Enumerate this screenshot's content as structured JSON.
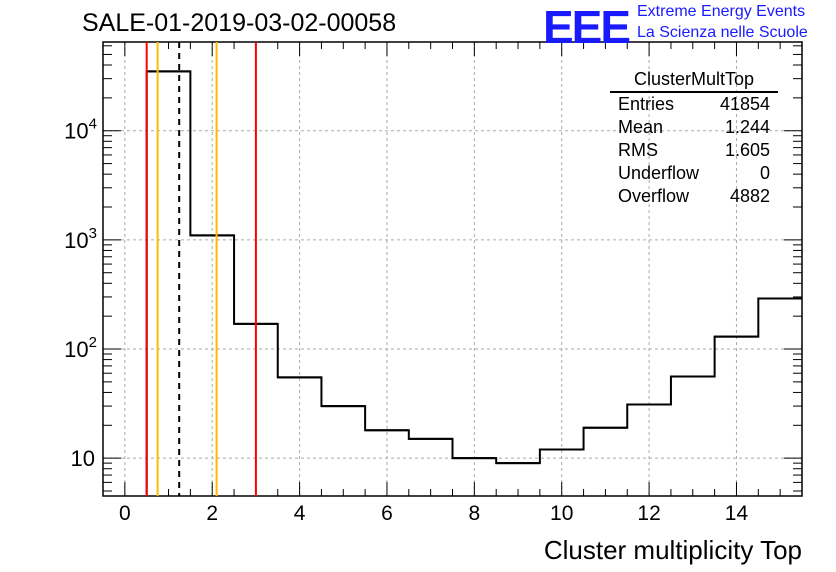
{
  "header": {
    "run_title": "SALE-01-2019-03-02-00058",
    "logo_text": "EEE",
    "logo_line1": "Extreme Energy Events",
    "logo_line2": "La Scienza nelle Scuole",
    "logo_color": "#1a1aff"
  },
  "stats_box": {
    "name": "ClusterMultTop",
    "rows": [
      {
        "label": "Entries",
        "value": "41854"
      },
      {
        "label": "Mean",
        "value": "1.244"
      },
      {
        "label": "RMS",
        "value": "1.605"
      },
      {
        "label": "Underflow",
        "value": "0"
      },
      {
        "label": "Overflow",
        "value": "4882"
      }
    ]
  },
  "chart_data": {
    "type": "histogram",
    "xlabel": "Cluster multiplicity Top",
    "ylabel": "",
    "xlim": [
      -0.5,
      15.5
    ],
    "ylim": [
      4.5,
      65000
    ],
    "y_scale": "log",
    "grid": true,
    "x_ticks": [
      0,
      2,
      4,
      6,
      8,
      10,
      12,
      14
    ],
    "y_ticks": [
      {
        "value": 10,
        "base": "10",
        "exp": ""
      },
      {
        "value": 100,
        "base": "10",
        "exp": "2"
      },
      {
        "value": 1000,
        "base": "10",
        "exp": "3"
      },
      {
        "value": 10000,
        "base": "10",
        "exp": "4"
      }
    ],
    "bin_edges": [
      0.5,
      1.5,
      2.5,
      3.5,
      4.5,
      5.5,
      6.5,
      7.5,
      8.5,
      9.5,
      10.5,
      11.5,
      12.5,
      13.5,
      14.5,
      15.5
    ],
    "counts": [
      35000,
      1100,
      170,
      55,
      30,
      18,
      15,
      10,
      9,
      12,
      19,
      31,
      56,
      130,
      290
    ],
    "vertical_lines": [
      {
        "x": 0.5,
        "color": "#ff0000",
        "style": "solid"
      },
      {
        "x": 0.75,
        "color": "#ffbb00",
        "style": "solid"
      },
      {
        "x": 1.244,
        "color": "#000000",
        "style": "dashed"
      },
      {
        "x": 2.1,
        "color": "#ffbb00",
        "style": "solid"
      },
      {
        "x": 3.0,
        "color": "#ff0000",
        "style": "solid"
      }
    ]
  }
}
